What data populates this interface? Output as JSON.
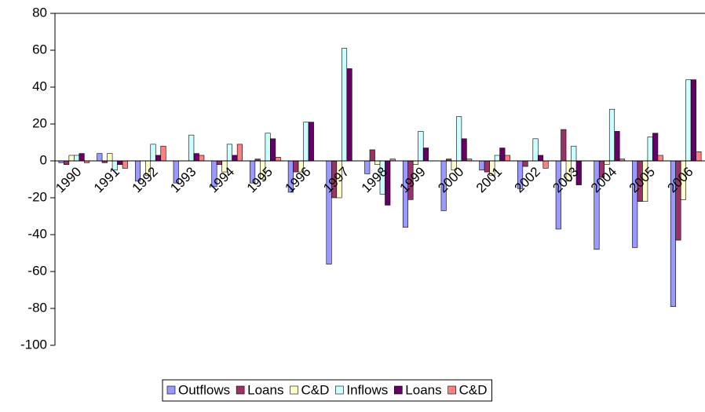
{
  "chart_data": {
    "type": "bar",
    "categories": [
      "1990",
      "1991",
      "1992",
      "1993",
      "1994",
      "1995",
      "1996",
      "1997",
      "1998",
      "1999",
      "2000",
      "2001",
      "2002",
      "2003",
      "2004",
      "2005",
      "2006"
    ],
    "series": [
      {
        "name": "Outflows",
        "color": "#9999ff",
        "values": [
          -1,
          4,
          -11,
          -12,
          -14,
          -12,
          -17,
          -56,
          -7,
          -36,
          -27,
          -5,
          -15,
          -37,
          -48,
          -47,
          -79
        ]
      },
      {
        "name": "Loans",
        "color": "#993366",
        "values": [
          -2,
          -1,
          0,
          0,
          -2,
          1,
          -6,
          -20,
          6,
          -21,
          1,
          -6,
          -3,
          17,
          -9,
          -22,
          -43
        ]
      },
      {
        "name": "C&D",
        "color": "#ffffcc",
        "values": [
          3,
          4,
          -8,
          0,
          -6,
          -10,
          -6,
          -20,
          -2,
          -2,
          -5,
          -8,
          0,
          -11,
          -2,
          -22,
          -21
        ]
      },
      {
        "name": "Inflows",
        "color": "#ccffff",
        "values": [
          3,
          -5,
          9,
          14,
          9,
          15,
          21,
          61,
          -18,
          16,
          24,
          3,
          12,
          8,
          28,
          13,
          44
        ]
      },
      {
        "name": "Loans",
        "color": "#660066",
        "values": [
          4,
          -2,
          3,
          4,
          3,
          12,
          21,
          50,
          -24,
          7,
          12,
          7,
          3,
          -13,
          16,
          15,
          44
        ]
      },
      {
        "name": "C&D",
        "color": "#ff8080",
        "values": [
          -1,
          -4,
          8,
          3,
          9,
          2,
          0,
          0,
          1,
          0,
          1,
          3,
          -4,
          0,
          1,
          3,
          5
        ]
      }
    ],
    "ylim": [
      -100,
      80
    ],
    "yticks": [
      -100,
      -80,
      -60,
      -40,
      -20,
      0,
      20,
      40,
      60,
      80
    ],
    "grid": false
  }
}
